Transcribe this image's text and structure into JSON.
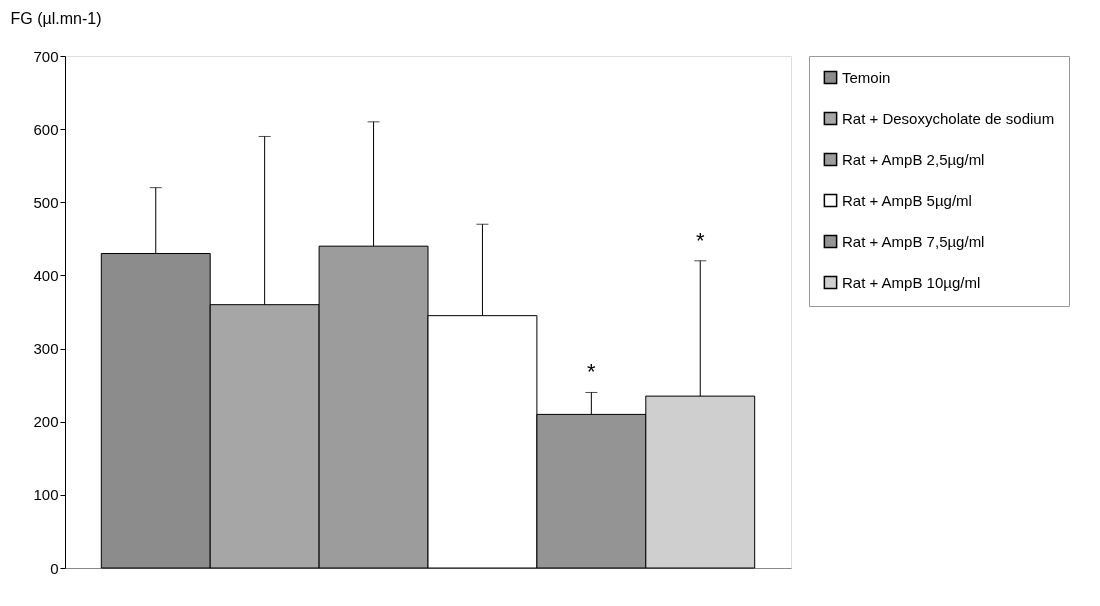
{
  "chart_data": {
    "type": "bar",
    "ylabel": "FG (µl.mn-1)",
    "categories": [
      null
    ],
    "series": [
      {
        "name": "Temoin",
        "color": "#8c8c8c",
        "values": [
          430
        ],
        "errors": [
          [
            430,
            520
          ]
        ]
      },
      {
        "name": "Rat + Desoxycholate de sodium",
        "color": "#a6a6a6",
        "values": [
          360
        ],
        "errors": [
          [
            360,
            590
          ]
        ]
      },
      {
        "name": "Rat + AmpB 2,5µg/ml",
        "color": "#9c9c9c",
        "values": [
          440
        ],
        "errors": [
          [
            440,
            610
          ]
        ]
      },
      {
        "name": "Rat + AmpB 5µg/ml",
        "color": "#ffffff",
        "values": [
          345
        ],
        "errors": [
          [
            345,
            470
          ]
        ]
      },
      {
        "name": "Rat + AmpB 7,5µg/ml",
        "color": "#949494",
        "values": [
          210
        ],
        "errors": [
          [
            210,
            240
          ]
        ]
      },
      {
        "name": "Rat + AmpB 10µg/ml",
        "color": "#cfcfcf",
        "values": [
          235
        ],
        "errors": [
          [
            235,
            420
          ]
        ]
      }
    ],
    "annotations": [
      {
        "text": "*",
        "y": 240
      },
      {
        "text": "*",
        "y": 420
      }
    ],
    "ylim": [
      0,
      700
    ],
    "yticks": [
      0,
      100,
      200,
      300,
      400,
      500,
      600,
      700
    ],
    "grid": false,
    "legend": "right",
    "tick_labels": "y"
  }
}
